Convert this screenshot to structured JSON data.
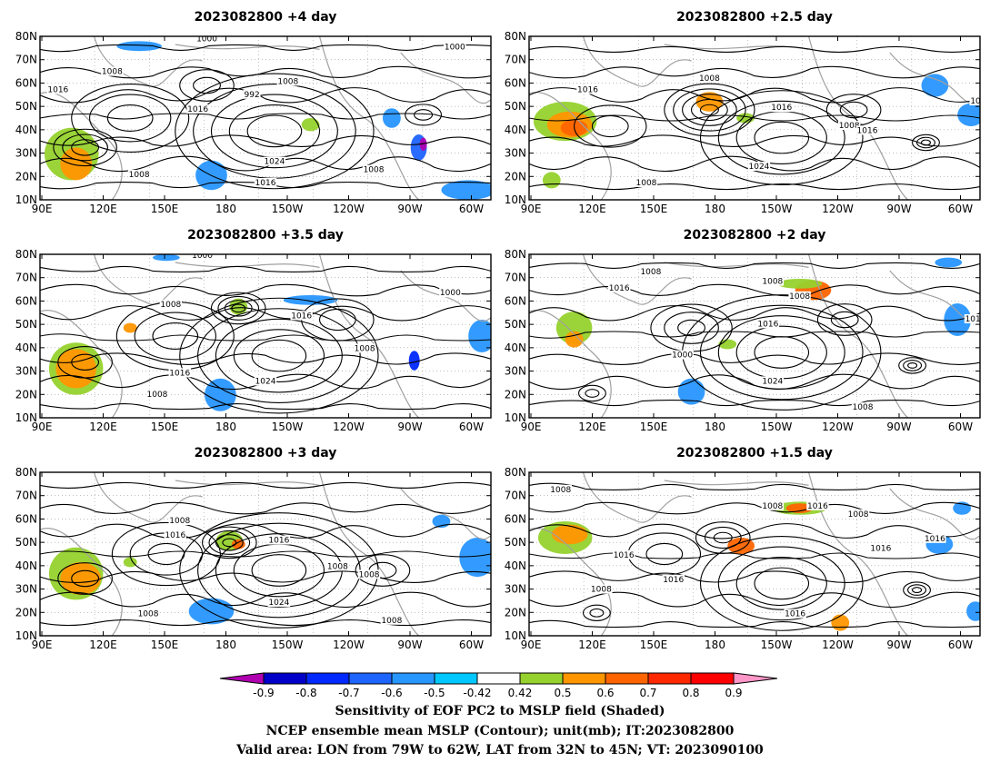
{
  "panels": [
    {
      "title": "2023082800  +4 day",
      "contour_labels": [
        "1000",
        "1000",
        "1008",
        "1016",
        "1016",
        "992",
        "1008",
        "1024",
        "1008",
        "1016",
        "1008"
      ]
    },
    {
      "title": "2023082800  +2.5  day",
      "contour_labels": [
        "1016",
        "1008",
        "1016",
        "1008",
        "1016",
        "1024",
        "1008",
        "10"
      ]
    },
    {
      "title": "2023082800  +3.5  day",
      "contour_labels": [
        "1000",
        "1008",
        "1016",
        "1000",
        "1008",
        "1016",
        "1024",
        "1008"
      ]
    },
    {
      "title": "2023082800  +2  day",
      "contour_labels": [
        "1008",
        "1016",
        "1008",
        "1008",
        "1016",
        "1000",
        "1016",
        "1024",
        "1008"
      ]
    },
    {
      "title": "2023082800  +3  day",
      "contour_labels": [
        "1008",
        "1016",
        "1016",
        "1008",
        "1008",
        "1024",
        "1008",
        "1008"
      ]
    },
    {
      "title": "2023082800  +1.5  day",
      "contour_labels": [
        "1008",
        "1008",
        "1016",
        "1008",
        "1016",
        "1016",
        "1016",
        "1016",
        "1008",
        "1016"
      ]
    }
  ],
  "axes": {
    "x_ticks": [
      "90E",
      "120E",
      "150E",
      "180",
      "150W",
      "120W",
      "90W",
      "60W"
    ],
    "y_ticks": [
      "10N",
      "20N",
      "30N",
      "40N",
      "50N",
      "60N",
      "70N",
      "80N"
    ]
  },
  "colorbar": {
    "ticks": [
      "-0.9",
      "-0.8",
      "-0.7",
      "-0.6",
      "-0.5",
      "-0.42",
      "0.42",
      "0.5",
      "0.6",
      "0.7",
      "0.8",
      "0.9"
    ],
    "colors": [
      "#b000b0",
      "#0000c8",
      "#0028ff",
      "#1e64ff",
      "#2896ff",
      "#00c8ff",
      "#ffffff",
      "#96d22d",
      "#ff9600",
      "#ff6400",
      "#ff2800",
      "#ff0000",
      "#ff96c8"
    ]
  },
  "caption": {
    "line1": "Sensitivity of EOF PC2 to MSLP field (Shaded)",
    "line2": "NCEP ensemble mean MSLP (Contour); unit(mb); IT:2023082800",
    "line3": "Valid area: LON from 79W to 62W, LAT from 32N to 45N; VT: 2023090100"
  }
}
